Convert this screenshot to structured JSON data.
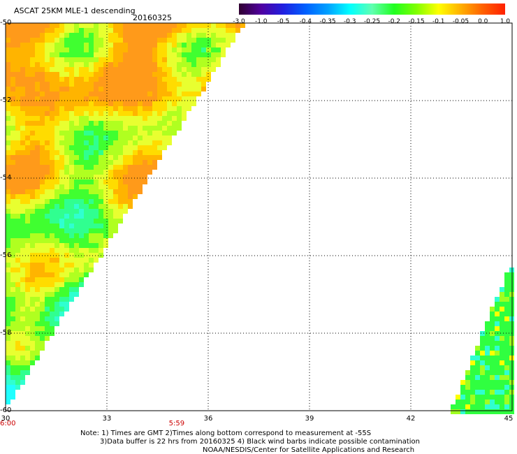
{
  "header": {
    "title": "ASCAT 25KM MLE-1 descending",
    "date": "20160325"
  },
  "colorbar": {
    "labels": [
      "-3.0",
      "-1.0",
      "-0.5",
      "-0.4",
      "-0.35",
      "-0.3",
      "-0.25",
      "-0.2",
      "-0.15",
      "-0.1",
      "-0.05",
      "0.0",
      "1.0"
    ],
    "colors": [
      "#300030",
      "#5000a0",
      "#2020e0",
      "#0060ff",
      "#00a0ff",
      "#00ffff",
      "#60ffb0",
      "#20ff20",
      "#80ff00",
      "#ffff00",
      "#ffb000",
      "#ff6000",
      "#ff2000"
    ]
  },
  "axes": {
    "lat_labels": [
      "-50",
      "-52",
      "-54",
      "-56",
      "-58",
      "-60"
    ],
    "lon_labels": [
      "30",
      "33",
      "36",
      "39",
      "42",
      "45"
    ],
    "lat_range": [
      -60,
      -50
    ],
    "lon_range": [
      30,
      45
    ]
  },
  "times": [
    {
      "label": "6:00",
      "lon": 30
    },
    {
      "label": "5:59",
      "lon": 35
    }
  ],
  "notes": {
    "line1": "Note: 1) Times are GMT 2)Times along bottom correspond to measurement at -55S",
    "line2": "3)Data buffer is 22 hrs from 20160325 4) Black wind barbs indicate possible contamination",
    "line3": "NOAA/NESDIS/Center for Satellite Applications and Research"
  }
}
